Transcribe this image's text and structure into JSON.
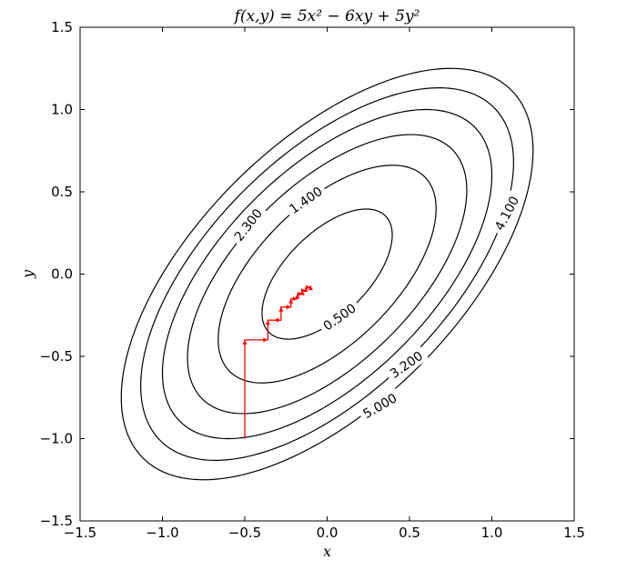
{
  "chart_data": {
    "type": "contour",
    "title": "f(x,y) = 5x² − 6xy + 5y²",
    "xlabel": "x",
    "ylabel": "y",
    "xlim": [
      -1.5,
      1.5
    ],
    "ylim": [
      -1.5,
      1.5
    ],
    "xticks": [
      -1.5,
      -1.0,
      -0.5,
      0.0,
      0.5,
      1.0,
      1.5
    ],
    "yticks": [
      -1.5,
      -1.0,
      -0.5,
      0.0,
      0.5,
      1.0,
      1.5
    ],
    "xtick_labels": [
      "−1.5",
      "−1.0",
      "−0.5",
      "0.0",
      "0.5",
      "1.0",
      "1.5"
    ],
    "ytick_labels": [
      "−1.5",
      "−1.0",
      "−0.5",
      "0.0",
      "0.5",
      "1.0",
      "1.5"
    ],
    "function": {
      "a": 5,
      "b": -6,
      "c": 5
    },
    "contour_levels": [
      0.5,
      1.4,
      2.3,
      3.2,
      4.1,
      5.0
    ],
    "contour_labels": [
      {
        "text": "0.500",
        "level": 0.5,
        "anchor": [
          0.075,
          -0.26
        ],
        "angle": -35
      },
      {
        "text": "1.400",
        "level": 1.4,
        "anchor": [
          -0.13,
          0.45
        ],
        "angle": -35
      },
      {
        "text": "2.300",
        "level": 2.3,
        "anchor": [
          -0.48,
          0.3
        ],
        "angle": -52
      },
      {
        "text": "3.200",
        "level": 3.2,
        "anchor": [
          0.48,
          -0.55
        ],
        "angle": -35
      },
      {
        "text": "4.100",
        "level": 4.1,
        "anchor": [
          1.09,
          0.37
        ],
        "angle": -62
      },
      {
        "text": "5.000",
        "level": 5.0,
        "anchor": [
          0.32,
          -0.8
        ],
        "angle": -30
      }
    ],
    "colors": {
      "contour": "#000000",
      "path": "#ff0000"
    },
    "path": {
      "x": [
        -0.5,
        -0.5,
        -0.36,
        -0.36,
        -0.28,
        -0.28,
        -0.22,
        -0.22,
        -0.18,
        -0.18,
        -0.15,
        -0.15,
        -0.13,
        -0.13,
        -0.1,
        -0.1
      ],
      "y": [
        -1.0,
        -0.4,
        -0.4,
        -0.28,
        -0.28,
        -0.2,
        -0.2,
        -0.15,
        -0.15,
        -0.12,
        -0.12,
        -0.1,
        -0.1,
        -0.08,
        -0.08,
        -0.07
      ]
    }
  }
}
